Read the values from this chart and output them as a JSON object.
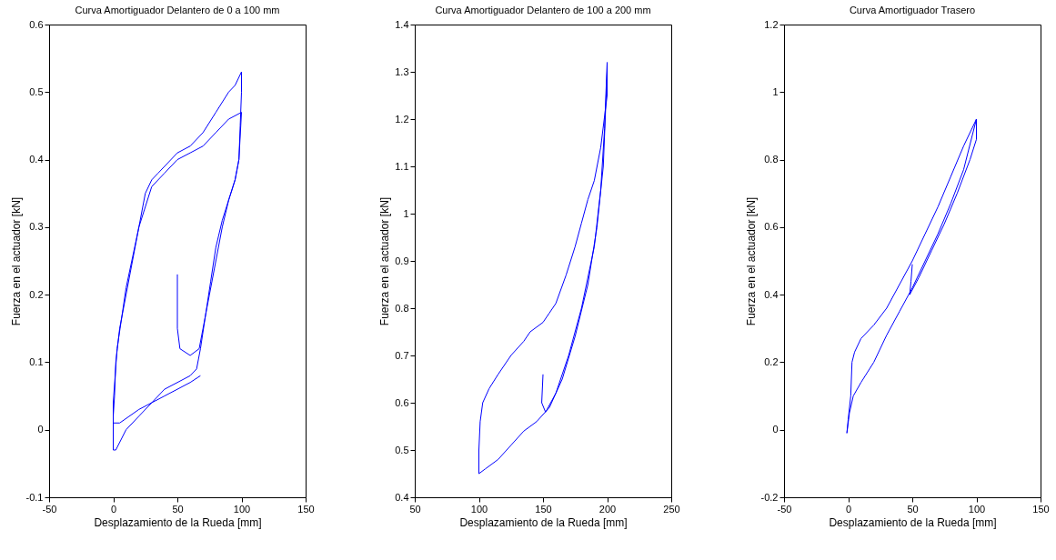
{
  "chart_data": [
    {
      "type": "line",
      "title": "Curva Amortiguador Delantero de 0 a 100 mm",
      "xlabel": "Desplazamiento de la Rueda [mm]",
      "ylabel": "Fuerza en el actuador [kN]",
      "xlim": [
        -50,
        150
      ],
      "ylim": [
        -0.1,
        0.6
      ],
      "xticks": [
        -50,
        0,
        50,
        100,
        150
      ],
      "yticks": [
        -0.1,
        0,
        0.1,
        0.2,
        0.3,
        0.4,
        0.5,
        0.6
      ],
      "grid": false,
      "series": [
        {
          "color": "#0000ff",
          "x": [
            50,
            50,
            52,
            60,
            67,
            70,
            75,
            80,
            85,
            90,
            95,
            98,
            99,
            100,
            100,
            95,
            90,
            80,
            70,
            60,
            50,
            40,
            35,
            30,
            25,
            20,
            15,
            10,
            5,
            2,
            1,
            0,
            0,
            2,
            10,
            20,
            30,
            40,
            50,
            60,
            65,
            68,
            72,
            76,
            80,
            85,
            90,
            95,
            98,
            100,
            90,
            80,
            70,
            60,
            50,
            40,
            30,
            20,
            10,
            3,
            0,
            0,
            5,
            20,
            40,
            60,
            68
          ],
          "values": [
            0.23,
            0.15,
            0.12,
            0.11,
            0.12,
            0.15,
            0.2,
            0.25,
            0.3,
            0.34,
            0.37,
            0.4,
            0.45,
            0.5,
            0.53,
            0.51,
            0.5,
            0.47,
            0.44,
            0.42,
            0.41,
            0.39,
            0.38,
            0.37,
            0.35,
            0.3,
            0.25,
            0.2,
            0.15,
            0.1,
            0.05,
            0.02,
            -0.03,
            -0.03,
            0,
            0.02,
            0.04,
            0.06,
            0.07,
            0.08,
            0.09,
            0.12,
            0.17,
            0.22,
            0.27,
            0.31,
            0.34,
            0.37,
            0.4,
            0.47,
            0.46,
            0.44,
            0.42,
            0.41,
            0.4,
            0.38,
            0.36,
            0.3,
            0.21,
            0.12,
            0.04,
            0.01,
            0.01,
            0.03,
            0.05,
            0.07,
            0.08
          ]
        }
      ]
    },
    {
      "type": "line",
      "title": "Curva Amortiguador Delantero de 100 a 200 mm",
      "xlabel": "Desplazamiento de la Rueda [mm]",
      "ylabel": "Fuerza en el actuador [kN]",
      "xlim": [
        50,
        250
      ],
      "ylim": [
        0.4,
        1.4
      ],
      "xticks": [
        50,
        100,
        150,
        200,
        250
      ],
      "yticks": [
        0.4,
        0.5,
        0.6,
        0.7,
        0.8,
        0.9,
        1,
        1.1,
        1.2,
        1.3,
        1.4
      ],
      "grid": false,
      "series": [
        {
          "color": "#0000ff",
          "x": [
            150,
            149,
            152,
            160,
            170,
            180,
            190,
            195,
            198,
            200,
            200,
            195,
            190,
            185,
            180,
            175,
            168,
            160,
            155,
            150,
            140,
            135,
            125,
            115,
            108,
            103,
            101,
            100,
            100,
            105,
            115,
            125,
            135,
            145,
            155,
            165,
            175,
            185,
            192,
            197,
            200
          ],
          "values": [
            0.66,
            0.6,
            0.58,
            0.62,
            0.7,
            0.8,
            0.93,
            1.05,
            1.18,
            1.32,
            1.25,
            1.14,
            1.07,
            1.03,
            0.98,
            0.93,
            0.87,
            0.81,
            0.79,
            0.77,
            0.75,
            0.73,
            0.7,
            0.66,
            0.63,
            0.6,
            0.56,
            0.5,
            0.45,
            0.46,
            0.48,
            0.51,
            0.54,
            0.56,
            0.59,
            0.65,
            0.74,
            0.85,
            0.97,
            1.1,
            1.3
          ]
        }
      ]
    },
    {
      "type": "line",
      "title": "Curva Amortiguador Trasero",
      "xlabel": "Desplazamiento de la Rueda [mm]",
      "ylabel": "Fuerza en el actuador [kN]",
      "xlim": [
        -50,
        150
      ],
      "ylim": [
        -0.2,
        1.2
      ],
      "xticks": [
        -50,
        0,
        50,
        100,
        150
      ],
      "yticks": [
        -0.2,
        0,
        0.2,
        0.4,
        0.6,
        0.8,
        1,
        1.2
      ],
      "grid": false,
      "series": [
        {
          "color": "#0000ff",
          "x": [
            50,
            49,
            48,
            55,
            65,
            75,
            85,
            95,
            100,
            100,
            90,
            80,
            70,
            60,
            50,
            40,
            30,
            20,
            10,
            5,
            3,
            2,
            0,
            -1,
            1,
            4,
            10,
            20,
            30,
            40,
            50,
            60,
            70,
            80,
            90,
            100
          ],
          "values": [
            0.49,
            0.44,
            0.4,
            0.45,
            0.53,
            0.61,
            0.7,
            0.8,
            0.86,
            0.92,
            0.84,
            0.75,
            0.66,
            0.58,
            0.5,
            0.43,
            0.36,
            0.31,
            0.27,
            0.23,
            0.2,
            0.1,
            0.03,
            -0.01,
            0.05,
            0.1,
            0.14,
            0.2,
            0.28,
            0.35,
            0.42,
            0.5,
            0.58,
            0.67,
            0.77,
            0.92
          ]
        }
      ]
    }
  ]
}
